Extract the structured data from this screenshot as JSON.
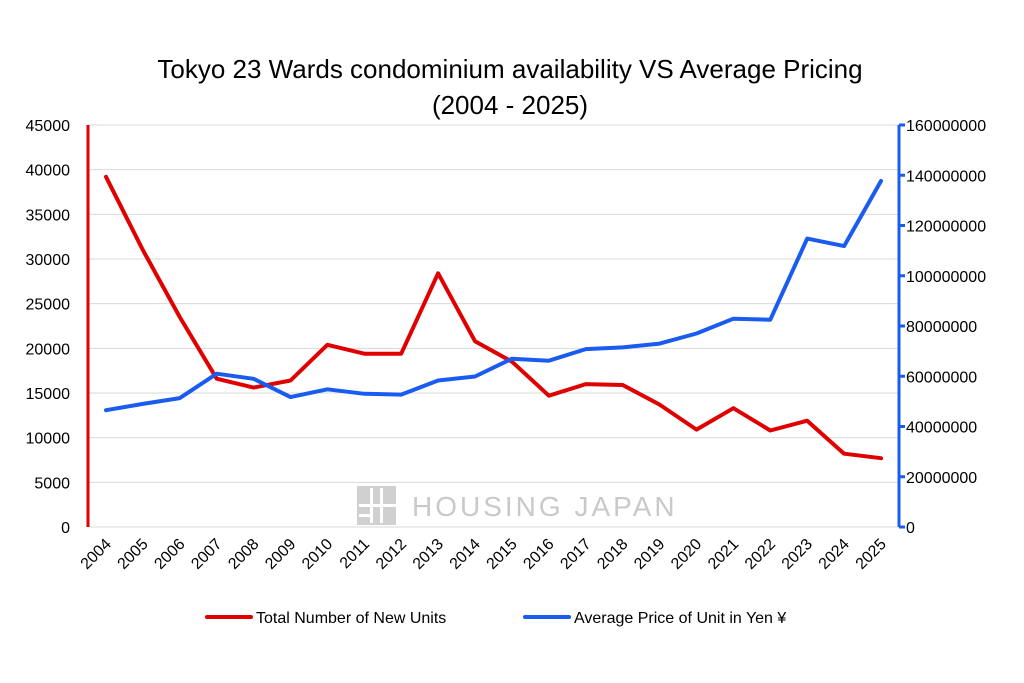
{
  "chart_data": {
    "type": "line",
    "title": "Tokyo 23 Wards condominium availability VS Average Pricing",
    "subtitle": "(2004 - 2025)",
    "categories": [
      "2004",
      "2005",
      "2006",
      "2007",
      "2008",
      "2009",
      "2010",
      "2011",
      "2012",
      "2013",
      "2014",
      "2015",
      "2016",
      "2017",
      "2018",
      "2019",
      "2020",
      "2021",
      "2022",
      "2023",
      "2024",
      "2025"
    ],
    "series": [
      {
        "name": "Total Number of New Units",
        "axis": "left",
        "color": "#e00000",
        "values": [
          39200,
          31000,
          23500,
          16600,
          15600,
          16400,
          20400,
          19400,
          19400,
          28400,
          20800,
          18500,
          14700,
          16000,
          15900,
          13700,
          10900,
          13300,
          10800,
          11900,
          8200,
          7700
        ]
      },
      {
        "name": "Average Price of Unit in Yen ¥",
        "axis": "right",
        "color": "#1a5cf0",
        "values": [
          46500000,
          49000000,
          51300000,
          61000000,
          59000000,
          51700000,
          54800000,
          53000000,
          52700000,
          58300000,
          59900000,
          67000000,
          66200000,
          70800000,
          71500000,
          73000000,
          77000000,
          82900000,
          82500000,
          114800000,
          111800000,
          137700000
        ]
      }
    ],
    "yleft": {
      "ylim": [
        0,
        45000
      ],
      "ticks": [
        "0",
        "5000",
        "10000",
        "15000",
        "20000",
        "25000",
        "30000",
        "35000",
        "40000",
        "45000"
      ],
      "color": "#e00000"
    },
    "yright": {
      "ylim": [
        0,
        160000000
      ],
      "ticks": [
        "0",
        "20000000",
        "40000000",
        "60000000",
        "80000000",
        "100000000",
        "120000000",
        "140000000",
        "160000000"
      ],
      "color": "#1a5cf0"
    },
    "grid": true,
    "legend": "bottom"
  },
  "watermark": {
    "text": "HOUSING JAPAN"
  }
}
